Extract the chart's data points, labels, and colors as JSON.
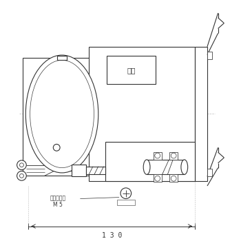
{
  "bg_color": "#ffffff",
  "line_color": "#333333",
  "light_line_color": "#bbbbbb",
  "fig_width": 3.5,
  "fig_height": 3.5,
  "dpi": 100,
  "label_meiban": "銘板",
  "label_earth": "アースネジ",
  "label_m5": "M 5",
  "label_130": "1 3 0"
}
